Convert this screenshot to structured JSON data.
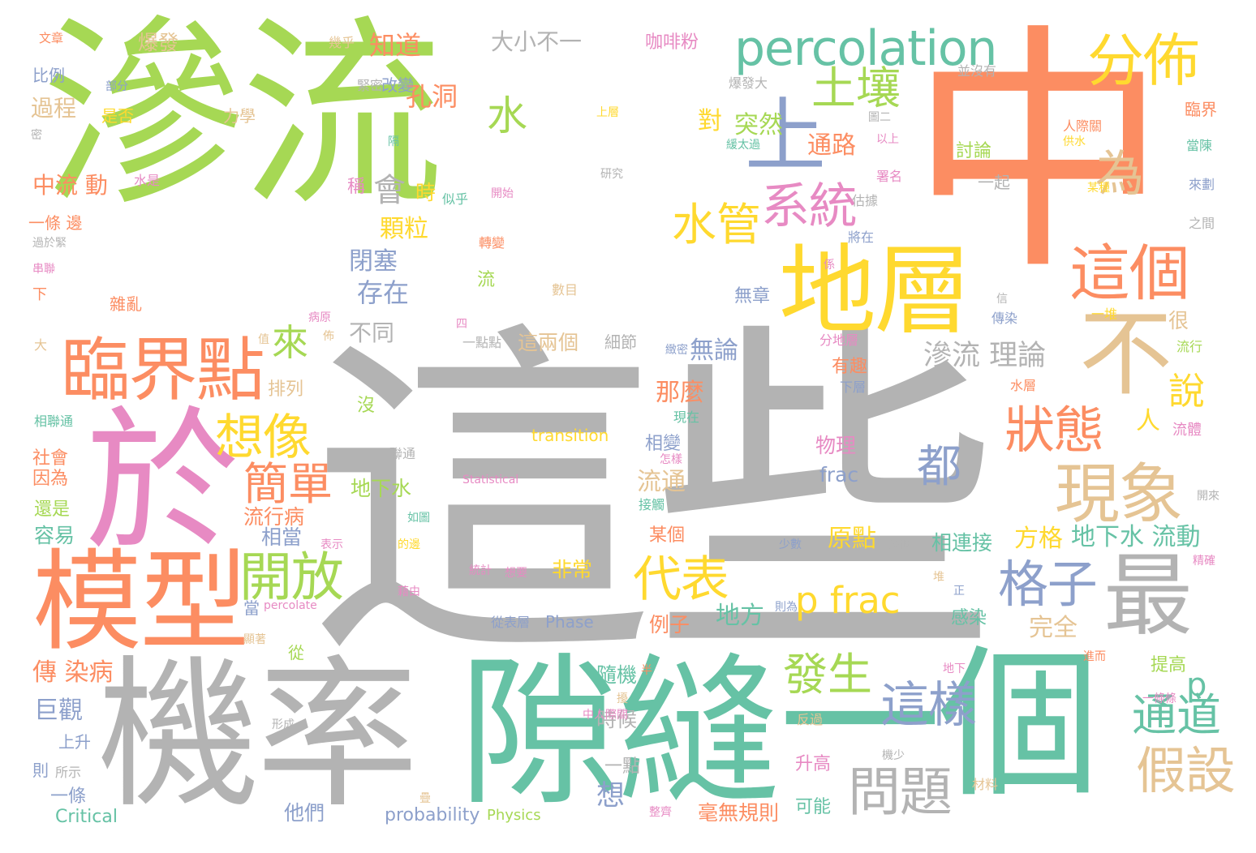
{
  "palette": {
    "green": "#a6d854",
    "orange": "#fc8d62",
    "gray": "#b3b3b3",
    "teal": "#66c2a5",
    "pink": "#e78ac3",
    "yellow": "#ffd92f",
    "tan": "#e5c494",
    "blue": "#8da0cb"
  },
  "words": [
    {
      "text": "滲流",
      "color": "#a6d854"
    },
    {
      "text": "中",
      "color": "#fc8d62"
    },
    {
      "text": "這些",
      "color": "#b3b3b3"
    },
    {
      "text": "機率",
      "color": "#b3b3b3"
    },
    {
      "text": "隙縫",
      "color": "#66c2a5"
    },
    {
      "text": "一個",
      "color": "#66c2a5"
    },
    {
      "text": "於",
      "color": "#e78ac3"
    },
    {
      "text": "地層",
      "color": "#ffd92f"
    },
    {
      "text": "模型",
      "color": "#fc8d62"
    },
    {
      "text": "不",
      "color": "#e5c494"
    },
    {
      "text": "最",
      "color": "#b3b3b3"
    },
    {
      "text": "臨界點",
      "color": "#fc8d62"
    },
    {
      "text": "上",
      "color": "#8da0cb"
    },
    {
      "text": "percolation",
      "color": "#66c2a5"
    },
    {
      "text": "分佈",
      "color": "#ffd92f"
    },
    {
      "text": "這個",
      "color": "#fc8d62"
    },
    {
      "text": "現象",
      "color": "#e5c494"
    },
    {
      "text": "土壤",
      "color": "#a6d854"
    },
    {
      "text": "系統",
      "color": "#e78ac3"
    },
    {
      "text": "開放",
      "color": "#a6d854"
    },
    {
      "text": "想像",
      "color": "#ffd92f"
    },
    {
      "text": "狀態",
      "color": "#fc8d62"
    },
    {
      "text": "格子",
      "color": "#8da0cb"
    },
    {
      "text": "問題",
      "color": "#b3b3b3"
    },
    {
      "text": "這樣",
      "color": "#8da0cb"
    },
    {
      "text": "假設",
      "color": "#e5c494"
    },
    {
      "text": "通道",
      "color": "#66c2a5"
    },
    {
      "text": "代表",
      "color": "#ffd92f"
    },
    {
      "text": "p frac",
      "color": "#ffd92f"
    },
    {
      "text": "簡單",
      "color": "#fc8d62"
    },
    {
      "text": "水管",
      "color": "#ffd92f"
    },
    {
      "text": "為",
      "color": "#e5c494"
    },
    {
      "text": "發生",
      "color": "#a6d854"
    },
    {
      "text": "都",
      "color": "#8da0cb"
    },
    {
      "text": "說",
      "color": "#ffd92f"
    },
    {
      "text": "水",
      "color": "#a6d854"
    },
    {
      "text": "來",
      "color": "#a6d854"
    },
    {
      "text": "會",
      "color": "#b3b3b3"
    },
    {
      "text": "p",
      "color": "#66c2a5"
    },
    {
      "text": "知道",
      "color": "#fc8d62"
    },
    {
      "text": "孔洞",
      "color": "#fc8d62"
    },
    {
      "text": "大小不一",
      "color": "#b3b3b3"
    },
    {
      "text": "咖啡粉",
      "color": "#e78ac3"
    },
    {
      "text": "爆發",
      "color": "#e5c494"
    },
    {
      "text": "通路",
      "color": "#fc8d62"
    },
    {
      "text": "對",
      "color": "#ffd92f"
    },
    {
      "text": "突然",
      "color": "#a6d854"
    },
    {
      "text": "滲流 理論",
      "color": "#b3b3b3"
    },
    {
      "text": "中流 動",
      "color": "#fc8d62"
    },
    {
      "text": "過程",
      "color": "#e5c494"
    },
    {
      "text": "顆粒",
      "color": "#ffd92f"
    },
    {
      "text": "閉塞",
      "color": "#8da0cb"
    },
    {
      "text": "存在",
      "color": "#8da0cb"
    },
    {
      "text": "不同",
      "color": "#b3b3b3"
    },
    {
      "text": "這兩個",
      "color": "#e5c494"
    },
    {
      "text": "無論",
      "color": "#8da0cb"
    },
    {
      "text": "那麼",
      "color": "#fc8d62"
    },
    {
      "text": "流通",
      "color": "#e5c494"
    },
    {
      "text": "地下水",
      "color": "#a6d854"
    },
    {
      "text": "地下水 流動",
      "color": "#66c2a5"
    },
    {
      "text": "方格",
      "color": "#ffd92f"
    },
    {
      "text": "原點",
      "color": "#ffd92f"
    },
    {
      "text": "非常",
      "color": "#ffd92f"
    },
    {
      "text": "地方",
      "color": "#66c2a5"
    },
    {
      "text": "完全",
      "color": "#e5c494"
    },
    {
      "text": "例子",
      "color": "#fc8d62"
    },
    {
      "text": "傳 染病",
      "color": "#fc8d62"
    },
    {
      "text": "巨觀",
      "color": "#8da0cb"
    },
    {
      "text": "流行病",
      "color": "#fc8d62"
    },
    {
      "text": "相當",
      "color": "#8da0cb"
    },
    {
      "text": "容易",
      "color": "#66c2a5"
    },
    {
      "text": "還是",
      "color": "#a6d854"
    },
    {
      "text": "社會",
      "color": "#fc8d62"
    },
    {
      "text": "因為",
      "color": "#fc8d62"
    },
    {
      "text": "一條",
      "color": "#8da0cb"
    },
    {
      "text": "上升",
      "color": "#8da0cb"
    },
    {
      "text": "時候",
      "color": "#b3b3b3"
    },
    {
      "text": "一點",
      "color": "#b3b3b3"
    },
    {
      "text": "想",
      "color": "#8da0cb"
    },
    {
      "text": "他們",
      "color": "#8da0cb"
    },
    {
      "text": "升高",
      "color": "#e78ac3"
    },
    {
      "text": "可能",
      "color": "#66c2a5"
    },
    {
      "text": "毫無規則",
      "color": "#fc8d62"
    },
    {
      "text": "隨機",
      "color": "#66c2a5"
    },
    {
      "text": "物理",
      "color": "#e78ac3"
    },
    {
      "text": "相變",
      "color": "#8da0cb"
    },
    {
      "text": "frac",
      "color": "#8da0cb"
    },
    {
      "text": "有趣",
      "color": "#fc8d62"
    },
    {
      "text": "感染",
      "color": "#66c2a5"
    },
    {
      "text": "提高",
      "color": "#a6d854"
    },
    {
      "text": "相連接",
      "color": "#66c2a5"
    },
    {
      "text": "某個",
      "color": "#fc8d62"
    },
    {
      "text": "很",
      "color": "#e5c494"
    },
    {
      "text": "無章",
      "color": "#8da0cb"
    },
    {
      "text": "稱",
      "color": "#e78ac3"
    },
    {
      "text": "時",
      "color": "#ffd92f"
    },
    {
      "text": "討論",
      "color": "#a6d854"
    },
    {
      "text": "一起",
      "color": "#b3b3b3"
    },
    {
      "text": "人",
      "color": "#ffd92f"
    },
    {
      "text": "transition",
      "color": "#ffd92f"
    },
    {
      "text": "Statistical",
      "color": "#e78ac3"
    },
    {
      "text": "Phase",
      "color": "#8da0cb"
    },
    {
      "text": "probability",
      "color": "#8da0cb"
    },
    {
      "text": "Physics",
      "color": "#a6d854"
    },
    {
      "text": "Critical",
      "color": "#66c2a5"
    },
    {
      "text": "percolate",
      "color": "#e78ac3"
    },
    {
      "text": "改變",
      "color": "#8da0cb"
    },
    {
      "text": "力學",
      "color": "#e5c494"
    },
    {
      "text": "是否",
      "color": "#ffd92f"
    },
    {
      "text": "比例",
      "color": "#8da0cb"
    },
    {
      "text": "文章",
      "color": "#fc8d62"
    },
    {
      "text": "部分",
      "color": "#8da0cb"
    },
    {
      "text": "緊密",
      "color": "#b3b3b3"
    },
    {
      "text": "幾乎",
      "color": "#e5c494"
    },
    {
      "text": "爆發大",
      "color": "#b3b3b3"
    },
    {
      "text": "並沒有",
      "color": "#b3b3b3"
    },
    {
      "text": "臨界",
      "color": "#fc8d62"
    },
    {
      "text": "當陳",
      "color": "#66c2a5"
    },
    {
      "text": "來劃",
      "color": "#8da0cb"
    },
    {
      "text": "某種",
      "color": "#ffd92f"
    },
    {
      "text": "之間",
      "color": "#b3b3b3"
    },
    {
      "text": "人際關",
      "color": "#fc8d62"
    },
    {
      "text": "供水",
      "color": "#ffd92f"
    },
    {
      "text": "以上",
      "color": "#e78ac3"
    },
    {
      "text": "署名",
      "color": "#e78ac3"
    },
    {
      "text": "估據",
      "color": "#b3b3b3"
    },
    {
      "text": "研究",
      "color": "#b3b3b3"
    },
    {
      "text": "水是",
      "color": "#e78ac3"
    },
    {
      "text": "似乎",
      "color": "#66c2a5"
    },
    {
      "text": "開始",
      "color": "#e78ac3"
    },
    {
      "text": "一條 邊",
      "color": "#fc8d62"
    },
    {
      "text": "過於緊",
      "color": "#b3b3b3"
    },
    {
      "text": "串聯",
      "color": "#e78ac3"
    },
    {
      "text": "下",
      "color": "#fc8d62"
    },
    {
      "text": "雜亂",
      "color": "#fc8d62"
    },
    {
      "text": "大",
      "color": "#e5c494"
    },
    {
      "text": "排列",
      "color": "#e5c494"
    },
    {
      "text": "相聯通",
      "color": "#66c2a5"
    },
    {
      "text": "沒",
      "color": "#a6d854"
    },
    {
      "text": "聯通",
      "color": "#b3b3b3"
    },
    {
      "text": "流",
      "color": "#a6d854"
    },
    {
      "text": "數目",
      "color": "#e5c494"
    },
    {
      "text": "轉變",
      "color": "#fc8d62"
    },
    {
      "text": "將在",
      "color": "#8da0cb"
    },
    {
      "text": "細節",
      "color": "#b3b3b3"
    },
    {
      "text": "一點點",
      "color": "#b3b3b3"
    },
    {
      "text": "病原",
      "color": "#e78ac3"
    },
    {
      "text": "分地層",
      "color": "#e78ac3"
    },
    {
      "text": "一堆",
      "color": "#ffd92f"
    },
    {
      "text": "傳染",
      "color": "#8da0cb"
    },
    {
      "text": "流行",
      "color": "#a6d854"
    },
    {
      "text": "水層",
      "color": "#fc8d62"
    },
    {
      "text": "下層",
      "color": "#8da0cb"
    },
    {
      "text": "流體",
      "color": "#e78ac3"
    },
    {
      "text": "現在",
      "color": "#66c2a5"
    },
    {
      "text": "怎樣",
      "color": "#e78ac3"
    },
    {
      "text": "接觸",
      "color": "#66c2a5"
    },
    {
      "text": "如圖",
      "color": "#66c2a5"
    },
    {
      "text": "表示",
      "color": "#e78ac3"
    },
    {
      "text": "的邊",
      "color": "#ffd92f"
    },
    {
      "text": "統計",
      "color": "#e78ac3"
    },
    {
      "text": "想要",
      "color": "#e78ac3"
    },
    {
      "text": "藉由",
      "color": "#e78ac3"
    },
    {
      "text": "從表層",
      "color": "#8da0cb"
    },
    {
      "text": "從",
      "color": "#a6d854"
    },
    {
      "text": "當",
      "color": "#8da0cb"
    },
    {
      "text": "顯著",
      "color": "#e5c494"
    },
    {
      "text": "少數",
      "color": "#8da0cb"
    },
    {
      "text": "多個",
      "color": "#b3b3b3"
    },
    {
      "text": "正",
      "color": "#8da0cb"
    },
    {
      "text": "堆",
      "color": "#e5c494"
    },
    {
      "text": "則為",
      "color": "#8da0cb"
    },
    {
      "text": "進而",
      "color": "#fc8d62"
    },
    {
      "text": "精確",
      "color": "#e78ac3"
    },
    {
      "text": "開來",
      "color": "#b3b3b3"
    },
    {
      "text": "一條條",
      "color": "#e78ac3"
    },
    {
      "text": "地下",
      "color": "#e78ac3"
    },
    {
      "text": "中人際關",
      "color": "#e78ac3"
    },
    {
      "text": "形成",
      "color": "#b3b3b3"
    },
    {
      "text": "所示",
      "color": "#b3b3b3"
    },
    {
      "text": "則",
      "color": "#8da0cb"
    },
    {
      "text": "疊",
      "color": "#e5c494"
    },
    {
      "text": "反過",
      "color": "#e5c494"
    },
    {
      "text": "材料",
      "color": "#e5c494"
    },
    {
      "text": "機少",
      "color": "#b3b3b3"
    },
    {
      "text": "整齊",
      "color": "#e78ac3"
    },
    {
      "text": "隔",
      "color": "#66c2a5"
    },
    {
      "text": "密",
      "color": "#b3b3b3"
    },
    {
      "text": "四",
      "color": "#e78ac3"
    },
    {
      "text": "佈",
      "color": "#e5c494"
    },
    {
      "text": "值",
      "color": "#e5c494"
    },
    {
      "text": "緻密",
      "color": "#8da0cb"
    },
    {
      "text": "係",
      "color": "#e78ac3"
    },
    {
      "text": "信",
      "color": "#b3b3b3"
    },
    {
      "text": "上層",
      "color": "#ffd92f"
    },
    {
      "text": "圖二",
      "color": "#b3b3b3"
    },
    {
      "text": "緩太過",
      "color": "#66c2a5"
    },
    {
      "text": "半",
      "color": "#fc8d62"
    },
    {
      "text": "擾",
      "color": "#e5c494"
    }
  ]
}
